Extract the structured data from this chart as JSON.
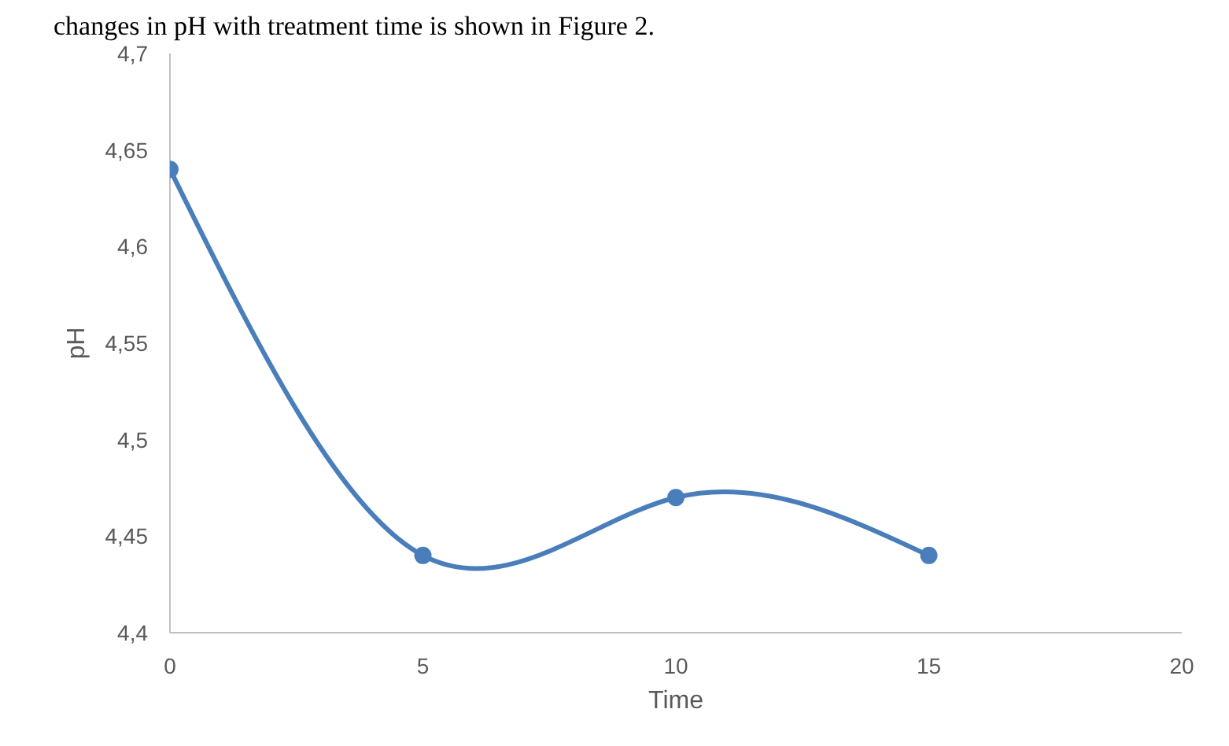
{
  "chart_data": {
    "type": "line",
    "annotations": [
      "changes in pH with treatment time is shown in Figure 2."
    ],
    "xlabel": "Time",
    "ylabel": "pH",
    "x": [
      0,
      5,
      10,
      15
    ],
    "series": [
      {
        "color": "#4a7ebb",
        "values": [
          4.64,
          4.44,
          4.47,
          4.44
        ]
      }
    ],
    "xlim": [
      0,
      20
    ],
    "xticks": [
      0,
      5,
      10,
      15,
      20
    ],
    "ylim": [
      4.4,
      4.7
    ],
    "yticks": [
      {
        "value": 4.4,
        "label": "4,4"
      },
      {
        "value": 4.45,
        "label": "4,45"
      },
      {
        "value": 4.5,
        "label": "4,5"
      },
      {
        "value": 4.55,
        "label": "4,55"
      },
      {
        "value": 4.6,
        "label": "4,6"
      },
      {
        "value": 4.65,
        "label": "4,65"
      },
      {
        "value": 4.7,
        "label": "4,7"
      }
    ],
    "grid": false,
    "legend": false,
    "marker": "circle",
    "line_style": "solid"
  }
}
